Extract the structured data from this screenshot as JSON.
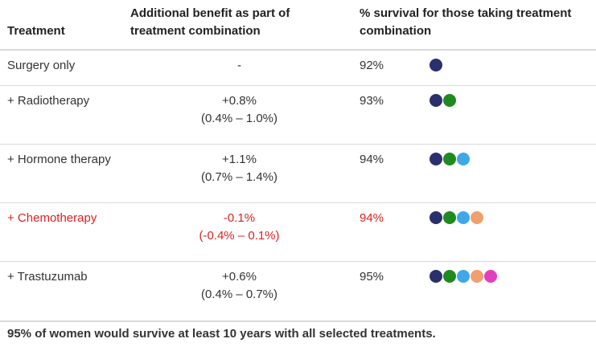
{
  "headers": {
    "treatment": "Treatment",
    "benefit": "Additional benefit as part of treatment combination",
    "survival": "% survival for those taking treatment combination"
  },
  "colors": {
    "surgery": "#2a2f6e",
    "radiotherapy": "#1f8a1f",
    "hormone": "#3ea8e8",
    "chemotherapy": "#f0a070",
    "trastuzumab": "#e040c0",
    "highlight": "#e02020"
  },
  "rows": [
    {
      "name": "Surgery only",
      "benefit": "-",
      "range": "",
      "survival": "92%",
      "dots": [
        "#2a2f6e"
      ]
    },
    {
      "name": "+ Radiotherapy",
      "benefit": "+0.8%",
      "range": "(0.4% – 1.0%)",
      "survival": "93%",
      "dots": [
        "#2a2f6e",
        "#1f8a1f"
      ]
    },
    {
      "name": "+ Hormone therapy",
      "benefit": "+1.1%",
      "range": "(0.7% – 1.4%)",
      "survival": "94%",
      "dots": [
        "#2a2f6e",
        "#1f8a1f",
        "#3ea8e8"
      ]
    },
    {
      "name": "+ Chemotherapy",
      "benefit": "-0.1%",
      "range": "(-0.4% – 0.1%)",
      "survival": "94%",
      "dots": [
        "#2a2f6e",
        "#1f8a1f",
        "#3ea8e8",
        "#f0a070"
      ]
    },
    {
      "name": "+ Trastuzumab",
      "benefit": "+0.6%",
      "range": "(0.4% – 0.7%)",
      "survival": "95%",
      "dots": [
        "#2a2f6e",
        "#1f8a1f",
        "#3ea8e8",
        "#f0a070",
        "#e040c0"
      ]
    }
  ],
  "footer": "95% of women would survive at least 10 years with all selected treatments."
}
